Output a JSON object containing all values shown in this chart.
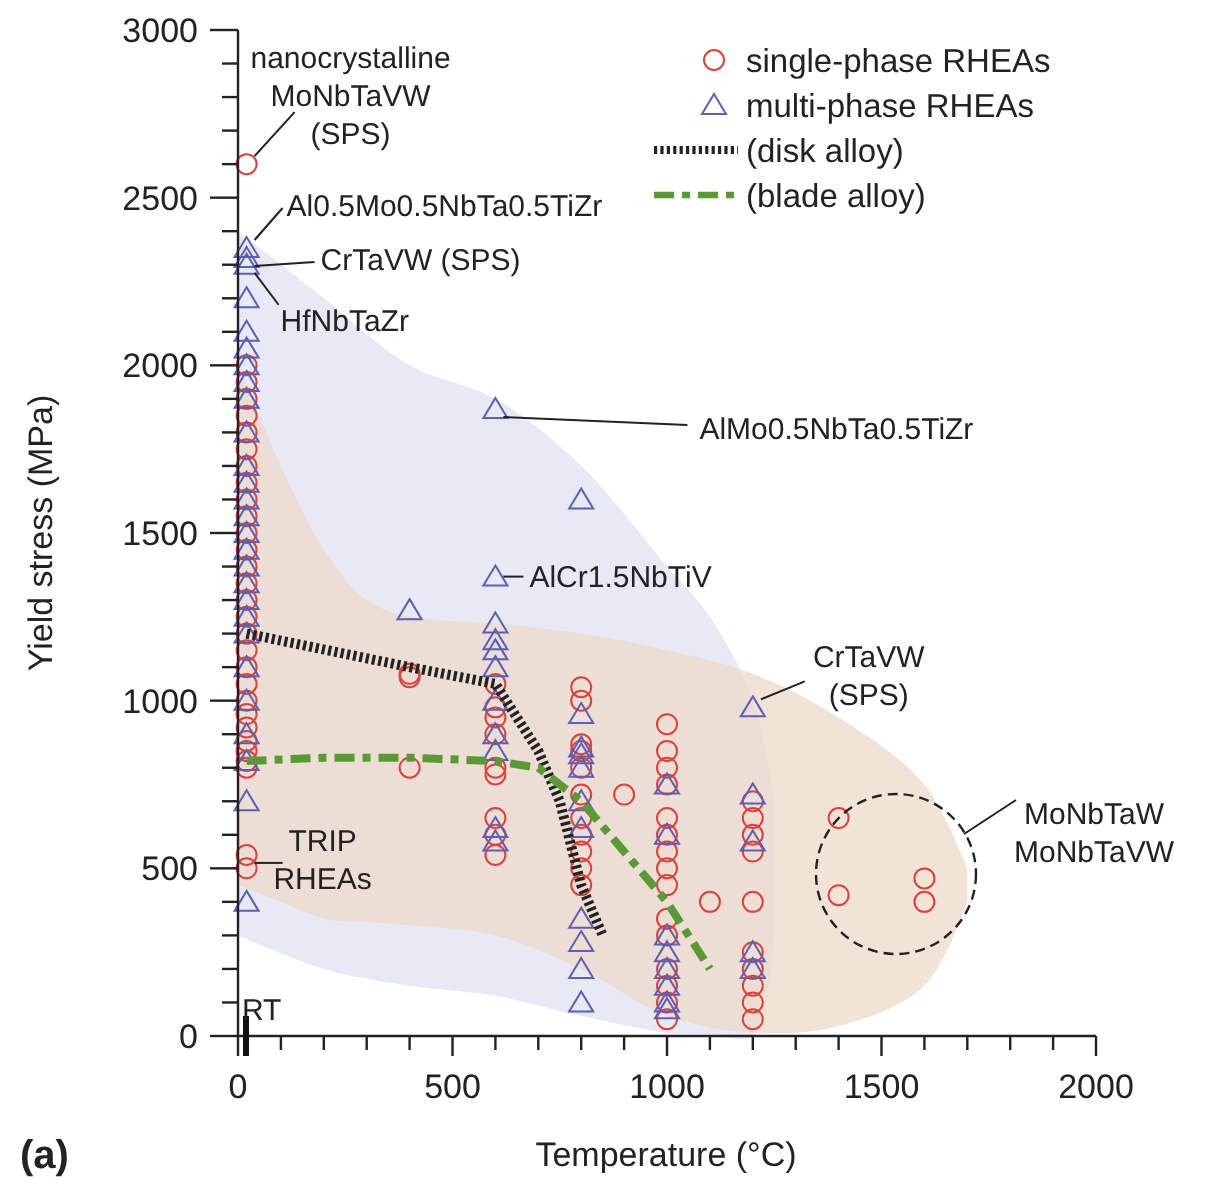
{
  "chart_data": {
    "type": "scatter",
    "xlabel": "Temperature (°C)",
    "ylabel": "Yield stress (MPa)",
    "xlim": [
      0,
      2000
    ],
    "ylim": [
      0,
      3000
    ],
    "xticks": [
      0,
      {
        "value": 100,
        "label": null
      },
      {
        "value": 200,
        "label": null
      },
      {
        "value": 300,
        "label": null
      },
      {
        "value": 400,
        "label": null
      },
      500,
      {
        "value": 600,
        "label": null
      },
      {
        "value": 700,
        "label": null
      },
      {
        "value": 800,
        "label": null
      },
      {
        "value": 900,
        "label": null
      },
      1000,
      {
        "value": 1100,
        "label": null
      },
      {
        "value": 1200,
        "label": null
      },
      {
        "value": 1300,
        "label": null
      },
      {
        "value": 1400,
        "label": null
      },
      1500,
      {
        "value": 1600,
        "label": null
      },
      {
        "value": 1700,
        "label": null
      },
      {
        "value": 1800,
        "label": null
      },
      {
        "value": 1900,
        "label": null
      },
      2000
    ],
    "yticks": [
      0,
      {
        "value": 100,
        "label": null
      },
      {
        "value": 200,
        "label": null
      },
      {
        "value": 300,
        "label": null
      },
      {
        "value": 400,
        "label": null
      },
      500,
      {
        "value": 600,
        "label": null
      },
      {
        "value": 700,
        "label": null
      },
      {
        "value": 800,
        "label": null
      },
      {
        "value": 900,
        "label": null
      },
      1000,
      {
        "value": 1100,
        "label": null
      },
      {
        "value": 1200,
        "label": null
      },
      {
        "value": 1300,
        "label": null
      },
      {
        "value": 1400,
        "label": null
      },
      1500,
      {
        "value": 1600,
        "label": null
      },
      {
        "value": 1700,
        "label": null
      },
      {
        "value": 1800,
        "label": null
      },
      {
        "value": 1900,
        "label": null
      },
      2000,
      {
        "value": 2100,
        "label": null
      },
      {
        "value": 2200,
        "label": null
      },
      {
        "value": 2300,
        "label": null
      },
      {
        "value": 2400,
        "label": null
      },
      2500,
      {
        "value": 2600,
        "label": null
      },
      {
        "value": 2700,
        "label": null
      },
      {
        "value": 2800,
        "label": null
      },
      {
        "value": 2900,
        "label": null
      },
      3000
    ],
    "grid": false,
    "legend": "top right",
    "series": [
      {
        "name": "single-phase RHEAs",
        "color": "#e0403a",
        "marker": "circle",
        "x": [
          20,
          20,
          20,
          20,
          20,
          20,
          20,
          20,
          20,
          20,
          20,
          20,
          20,
          20,
          20,
          20,
          20,
          20,
          20,
          20,
          20,
          20,
          20,
          20,
          20,
          20,
          20,
          20,
          20,
          20,
          400,
          400,
          400,
          600,
          600,
          600,
          600,
          600,
          600,
          600,
          600,
          600,
          800,
          800,
          800,
          800,
          800,
          800,
          800,
          800,
          800,
          800,
          800,
          900,
          1000,
          1000,
          1000,
          1000,
          1000,
          1000,
          1000,
          1000,
          1000,
          1000,
          1000,
          1000,
          1000,
          1000,
          1000,
          1100,
          1200,
          1200,
          1200,
          1200,
          1200,
          1200,
          1200,
          1200,
          1200,
          1200,
          1400,
          1400,
          1600,
          1600
        ],
        "values": [
          2600,
          2000,
          1950,
          1900,
          1850,
          1800,
          1750,
          1700,
          1650,
          1600,
          1550,
          1500,
          1450,
          1400,
          1350,
          1300,
          1250,
          1200,
          1150,
          1100,
          1050,
          1000,
          960,
          920,
          880,
          850,
          820,
          800,
          540,
          500,
          1080,
          1070,
          800,
          1050,
          980,
          950,
          900,
          800,
          780,
          650,
          600,
          540,
          1040,
          1000,
          870,
          850,
          800,
          720,
          650,
          600,
          550,
          500,
          450,
          720,
          930,
          850,
          800,
          750,
          650,
          600,
          550,
          500,
          450,
          350,
          300,
          200,
          150,
          100,
          50,
          400,
          700,
          650,
          600,
          550,
          400,
          250,
          200,
          150,
          100,
          50,
          650,
          420,
          470,
          400
        ]
      },
      {
        "name": "multi-phase RHEAs",
        "color": "#5a5fb8",
        "marker": "triangle",
        "x": [
          20,
          20,
          20,
          20,
          20,
          20,
          20,
          20,
          20,
          20,
          20,
          20,
          20,
          20,
          20,
          20,
          20,
          20,
          20,
          20,
          20,
          20,
          20,
          20,
          20,
          20,
          20,
          400,
          600,
          600,
          600,
          600,
          600,
          600,
          600,
          600,
          600,
          600,
          600,
          800,
          800,
          800,
          800,
          800,
          800,
          800,
          800,
          800,
          800,
          800,
          1000,
          1000,
          1000,
          1000,
          1000,
          1000,
          1000,
          1000,
          1200,
          1200,
          1200,
          1200,
          1200
        ],
        "values": [
          2350,
          2320,
          2300,
          2200,
          2100,
          2050,
          2000,
          1950,
          1900,
          1800,
          1700,
          1650,
          1600,
          1550,
          1500,
          1450,
          1400,
          1350,
          1300,
          1250,
          1200,
          1100,
          1000,
          900,
          820,
          700,
          400,
          1270,
          1870,
          1370,
          1230,
          1180,
          1150,
          1100,
          1000,
          900,
          850,
          620,
          580,
          1600,
          960,
          860,
          840,
          800,
          700,
          620,
          350,
          280,
          200,
          100,
          750,
          600,
          300,
          250,
          200,
          150,
          100,
          80,
          980,
          720,
          580,
          250,
          200
        ]
      },
      {
        "type": "line",
        "name": "(disk alloy)",
        "color": "#222222",
        "line_style": "dotted",
        "x": [
          20,
          400,
          600,
          650,
          700,
          750,
          780,
          800,
          850
        ],
        "values": [
          1200,
          1100,
          1050,
          950,
          850,
          700,
          550,
          450,
          300
        ]
      },
      {
        "type": "line",
        "name": "(blade alloy)",
        "color": "#5a9a35",
        "line_style": "dashdot",
        "x": [
          20,
          200,
          400,
          600,
          700,
          800,
          900,
          1000,
          1100
        ],
        "values": [
          820,
          830,
          830,
          820,
          800,
          700,
          550,
          400,
          200
        ]
      }
    ],
    "annotations": [
      {
        "text": "nanocrystalline\nMoNbTaVW\n(SPS)",
        "x": 20,
        "y": 2600
      },
      {
        "text": "Al0.5Mo0.5NbTa0.5TiZr",
        "x": 20,
        "y": 2350
      },
      {
        "text": "CrTaVW (SPS)",
        "x": 20,
        "y": 2320
      },
      {
        "text": "HfNbTaZr",
        "x": 20,
        "y": 2300
      },
      {
        "text": "AlMo0.5NbTa0.5TiZr",
        "x": 600,
        "y": 1870
      },
      {
        "text": "AlCr1.5NbTiV",
        "x": 600,
        "y": 1370
      },
      {
        "text": "CrTaVW\n(SPS)",
        "x": 1200,
        "y": 980
      },
      {
        "text": "TRIP\nRHEAs",
        "x": 20,
        "y": 540
      },
      "MoNbTaW\nMoNbTaVW",
      "RT",
      "(a)"
    ]
  }
}
